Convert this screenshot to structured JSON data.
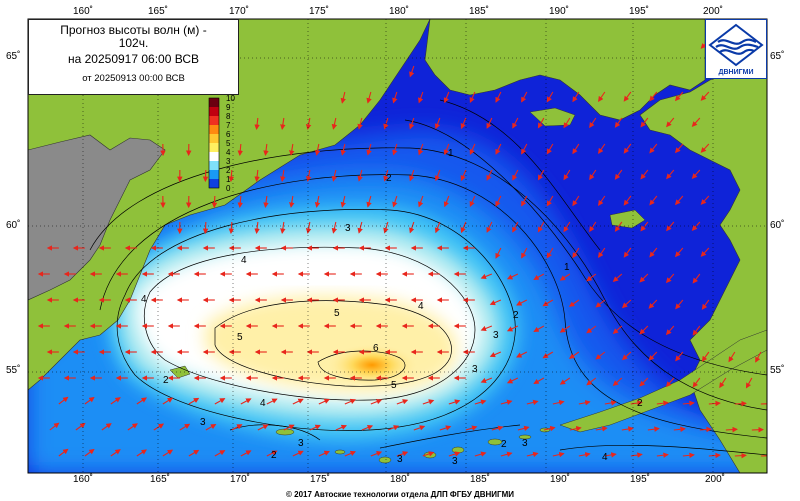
{
  "title": {
    "line1": "Прогноз высоты волн (м) -",
    "line1b": "102ч.",
    "line2": "на 20250917 06:00 ВСВ",
    "line3": "от 20250913 00:00 ВСВ"
  },
  "logo": {
    "text": "ДВНИГМИ"
  },
  "credit": "© 2017 Автоские технологии отдела ДЛП ФГБУ ДВНИГМИ",
  "lon_labels": [
    "160˚",
    "165˚",
    "170˚",
    "175˚",
    "180˚",
    "185˚",
    "190˚",
    "195˚",
    "200˚"
  ],
  "lat_labels": [
    "65˚",
    "60˚",
    "55˚"
  ],
  "colorbar": {
    "ticks": [
      "10",
      "9",
      "8",
      "7",
      "6",
      "5",
      "4",
      "3",
      "2",
      "1",
      "0"
    ]
  },
  "contour_labels": [
    "1",
    "1",
    "2",
    "2",
    "3",
    "3",
    "3",
    "3",
    "4",
    "4",
    "4",
    "4",
    "4",
    "5",
    "5",
    "5",
    "6",
    "2",
    "2",
    "3",
    "3",
    "2",
    "2",
    "3",
    "3"
  ],
  "colors": {
    "land": "#8fc13a",
    "land_dark": "#8a8a8a",
    "sea_deep": "#0a1fd0",
    "arrow": "#e8261c"
  }
}
